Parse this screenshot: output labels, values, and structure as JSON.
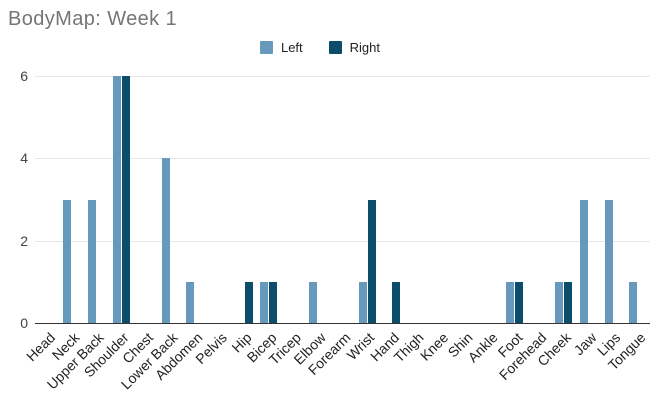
{
  "header": {
    "title": "BodyMap: Week 1",
    "title_color": "#757575"
  },
  "legend": {
    "items": [
      {
        "label": "Left",
        "color": "#6699bb"
      },
      {
        "label": "Right",
        "color": "#0d4d6c"
      }
    ]
  },
  "chart_data": {
    "type": "bar",
    "title": "BodyMap: Week 1",
    "categories": [
      "Head",
      "Neck",
      "Upper Back",
      "Shoulder",
      "Chest",
      "Lower Back",
      "Abdomen",
      "Pelvis",
      "Hip",
      "Bicep",
      "Tricep",
      "Elbow",
      "Forearm",
      "Wrist",
      "Hand",
      "Thigh",
      "Knee",
      "Shin",
      "Ankle",
      "Foot",
      "Forehead",
      "Cheek",
      "Jaw",
      "Lips",
      "Tongue"
    ],
    "series": [
      {
        "name": "Left",
        "color": "#6699bb",
        "values": [
          0,
          3,
          3,
          6,
          0,
          4,
          1,
          0,
          0,
          1,
          0,
          1,
          0,
          1,
          0,
          0,
          0,
          0,
          0,
          1,
          0,
          1,
          3,
          3,
          1
        ]
      },
      {
        "name": "Right",
        "color": "#0d4d6c",
        "values": [
          0,
          0,
          0,
          6,
          0,
          0,
          0,
          0,
          1,
          1,
          0,
          0,
          0,
          3,
          1,
          0,
          0,
          0,
          0,
          1,
          0,
          1,
          0,
          0,
          0
        ]
      }
    ],
    "xlabel": "",
    "ylabel": "",
    "yticks": [
      0,
      2,
      4,
      6
    ],
    "ylim": [
      0,
      6
    ],
    "grid": true,
    "legend_position": "top",
    "x_label_rotation_deg": 45,
    "colors": {
      "gridline": "#e6e6e6",
      "axis_line": "#333333",
      "y_tick_label": "#444444",
      "category_label": "#222222",
      "background": "#ffffff"
    }
  }
}
